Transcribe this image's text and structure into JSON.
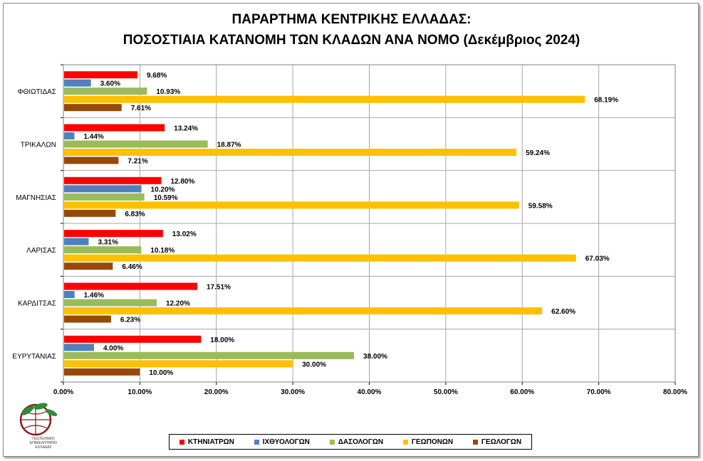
{
  "title_line1": "ΠΑΡΑΡΤΗΜΑ ΚΕΝΤΡΙΚΗΣ ΕΛΛΑΔΑΣ:",
  "title_line2": "ΠΟΣΟΣΤΙΑΙΑ ΚΑΤΑΝΟΜΗ ΤΩΝ ΚΛΑΔΩΝ ΑΝΑ ΝΟΜΟ (Δεκέμβριος 2024)",
  "logo": {
    "text_line1": "ΓΕΩΤΕΧΝΙΚΟ",
    "text_line2": "ΕΠΙΜΕΛΗΤΗΡΙΟ",
    "text_line3": "ΕΛΛΑΔΑΣ"
  },
  "chart_data": {
    "type": "bar",
    "orientation": "horizontal",
    "categories": [
      "ΦΘΙΩΤΙΔΑΣ",
      "ΤΡΙΚΑΛΩΝ",
      "ΜΑΓΝΗΣΙΑΣ",
      "ΛΑΡΙΣΑΣ",
      "ΚΑΡΔΙΤΣΑΣ",
      "ΕΥΡΥΤΑΝΙΑΣ"
    ],
    "series": [
      {
        "name": "ΚΤΗΝΙΑΤΡΩΝ",
        "color": "#ff0000",
        "values": [
          9.68,
          13.24,
          12.8,
          13.02,
          17.51,
          18.0
        ],
        "labels": [
          "9.68%",
          "13.24%",
          "12.80%",
          "13.02%",
          "17.51%",
          "18.00%"
        ]
      },
      {
        "name": "ΙΧΘΥΟΛΟΓΩΝ",
        "color": "#4f81bd",
        "values": [
          3.6,
          1.44,
          10.2,
          3.31,
          1.46,
          4.0
        ],
        "labels": [
          "3.60%",
          "1.44%",
          "10.20%",
          "3.31%",
          "1.46%",
          "4.00%"
        ]
      },
      {
        "name": "ΔΑΣΟΛΟΓΩΝ",
        "color": "#9bbb59",
        "values": [
          10.93,
          18.87,
          10.59,
          10.18,
          12.2,
          38.0
        ],
        "labels": [
          "10.93%",
          "18.87%",
          "10.59%",
          "10.18%",
          "12.20%",
          "38.00%"
        ]
      },
      {
        "name": "ΓΕΩΠΟΝΩΝ",
        "color": "#ffc000",
        "values": [
          68.19,
          59.24,
          59.58,
          67.03,
          62.6,
          30.0
        ],
        "labels": [
          "68.19%",
          "59.24%",
          "59.58%",
          "67.03%",
          "62.60%",
          "30.00%"
        ]
      },
      {
        "name": "ΓΕΩΛΟΓΩΝ",
        "color": "#984807",
        "values": [
          7.61,
          7.21,
          6.83,
          6.46,
          6.23,
          10.0
        ],
        "labels": [
          "7.61%",
          "7.21%",
          "6.83%",
          "6.46%",
          "6.23%",
          "10.00%"
        ]
      }
    ],
    "xlim": [
      0,
      80
    ],
    "xticks": [
      "0.00%",
      "10.00%",
      "20.00%",
      "30.00%",
      "40.00%",
      "50.00%",
      "60.00%",
      "70.00%",
      "80.00%"
    ],
    "grid": true,
    "legend_position": "bottom"
  }
}
